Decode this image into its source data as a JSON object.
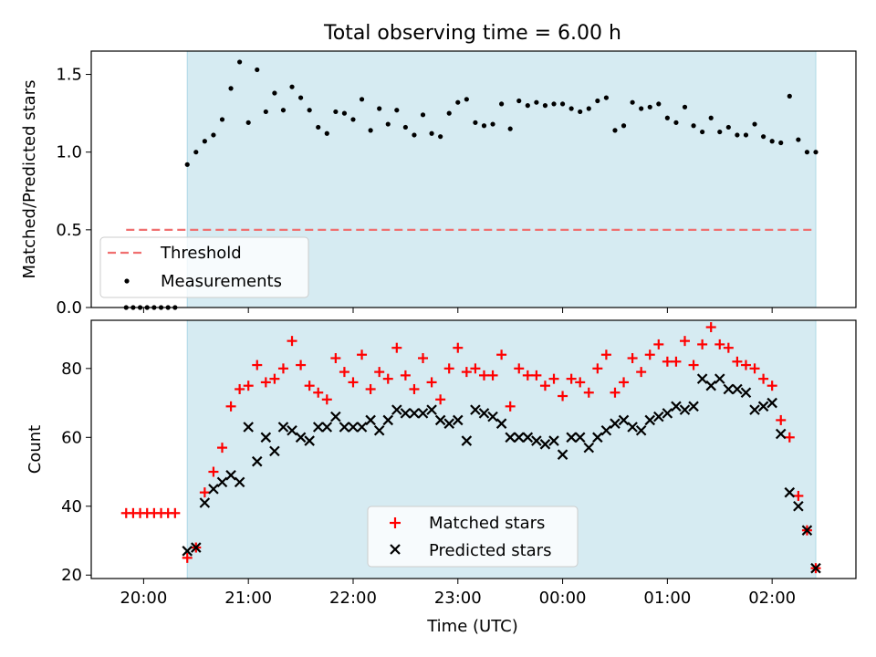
{
  "chart_data": [
    {
      "type": "scatter",
      "title": "Total observing time = 6.00 h",
      "xlabel": "",
      "ylabel": "Matched/Predicted stars",
      "xlim": [
        "19:30",
        "02:48"
      ],
      "ylim": [
        0,
        1.65
      ],
      "xticks": [
        "20:00",
        "21:00",
        "22:00",
        "23:00",
        "00:00",
        "01:00",
        "02:00"
      ],
      "yticks": [
        "0.0",
        "0.5",
        "1.0",
        "1.5"
      ],
      "observing_window": [
        "20:25",
        "02:25"
      ],
      "threshold": {
        "name": "Threshold",
        "value": 0.5,
        "color": "#f07070"
      },
      "series": [
        {
          "name": "Measurements",
          "color": "#000000",
          "marker": "dot",
          "x": [
            "19:50",
            "19:54",
            "19:58",
            "20:02",
            "20:06",
            "20:10",
            "20:14",
            "20:18",
            "20:25",
            "20:30",
            "20:35",
            "20:40",
            "20:45",
            "20:50",
            "20:55",
            "21:00",
            "21:05",
            "21:10",
            "21:15",
            "21:20",
            "21:25",
            "21:30",
            "21:35",
            "21:40",
            "21:45",
            "21:50",
            "21:55",
            "22:00",
            "22:05",
            "22:10",
            "22:15",
            "22:20",
            "22:25",
            "22:30",
            "22:35",
            "22:40",
            "22:45",
            "22:50",
            "22:55",
            "23:00",
            "23:05",
            "23:10",
            "23:15",
            "23:20",
            "23:25",
            "23:30",
            "23:35",
            "23:40",
            "23:45",
            "23:50",
            "23:55",
            "00:00",
            "00:05",
            "00:10",
            "00:15",
            "00:20",
            "00:25",
            "00:30",
            "00:35",
            "00:40",
            "00:45",
            "00:50",
            "00:55",
            "01:00",
            "01:05",
            "01:10",
            "01:15",
            "01:20",
            "01:25",
            "01:30",
            "01:35",
            "01:40",
            "01:45",
            "01:50",
            "01:55",
            "02:00",
            "02:05",
            "02:10",
            "02:15",
            "02:20",
            "02:25"
          ],
          "y": [
            0,
            0,
            0,
            0,
            0,
            0,
            0,
            0,
            0.92,
            1.0,
            1.07,
            1.11,
            1.21,
            1.41,
            1.58,
            1.19,
            1.53,
            1.26,
            1.38,
            1.27,
            1.42,
            1.35,
            1.27,
            1.16,
            1.12,
            1.26,
            1.25,
            1.21,
            1.34,
            1.14,
            1.28,
            1.18,
            1.27,
            1.16,
            1.11,
            1.24,
            1.12,
            1.1,
            1.25,
            1.32,
            1.34,
            1.19,
            1.17,
            1.18,
            1.31,
            1.15,
            1.33,
            1.3,
            1.32,
            1.3,
            1.31,
            1.31,
            1.28,
            1.26,
            1.28,
            1.33,
            1.35,
            1.14,
            1.17,
            1.32,
            1.28,
            1.29,
            1.31,
            1.22,
            1.19,
            1.29,
            1.17,
            1.13,
            1.22,
            1.13,
            1.16,
            1.11,
            1.11,
            1.18,
            1.1,
            1.07,
            1.06,
            1.36,
            1.08,
            1.0,
            1.0
          ]
        }
      ]
    },
    {
      "type": "scatter",
      "title": "",
      "xlabel": "Time (UTC)",
      "ylabel": "Count",
      "xlim": [
        "19:30",
        "02:48"
      ],
      "ylim": [
        19,
        94
      ],
      "xticks": [
        "20:00",
        "21:00",
        "22:00",
        "23:00",
        "00:00",
        "01:00",
        "02:00"
      ],
      "yticks": [
        "20",
        "40",
        "60",
        "80"
      ],
      "observing_window": [
        "20:25",
        "02:25"
      ],
      "series": [
        {
          "name": "Matched stars",
          "color": "#ff0000",
          "marker": "plus",
          "x": [
            "19:50",
            "19:54",
            "19:58",
            "20:02",
            "20:06",
            "20:10",
            "20:14",
            "20:18",
            "20:25",
            "20:30",
            "20:35",
            "20:40",
            "20:45",
            "20:50",
            "20:55",
            "21:00",
            "21:05",
            "21:10",
            "21:15",
            "21:20",
            "21:25",
            "21:30",
            "21:35",
            "21:40",
            "21:45",
            "21:50",
            "21:55",
            "22:00",
            "22:05",
            "22:10",
            "22:15",
            "22:20",
            "22:25",
            "22:30",
            "22:35",
            "22:40",
            "22:45",
            "22:50",
            "22:55",
            "23:00",
            "23:05",
            "23:10",
            "23:15",
            "23:20",
            "23:25",
            "23:30",
            "23:35",
            "23:40",
            "23:45",
            "23:50",
            "23:55",
            "00:00",
            "00:05",
            "00:10",
            "00:15",
            "00:20",
            "00:25",
            "00:30",
            "00:35",
            "00:40",
            "00:45",
            "00:50",
            "00:55",
            "01:00",
            "01:05",
            "01:10",
            "01:15",
            "01:20",
            "01:25",
            "01:30",
            "01:35",
            "01:40",
            "01:45",
            "01:50",
            "01:55",
            "02:00",
            "02:05",
            "02:10",
            "02:15",
            "02:20",
            "02:25"
          ],
          "y": [
            38,
            38,
            38,
            38,
            38,
            38,
            38,
            38,
            25,
            28,
            44,
            50,
            57,
            69,
            74,
            75,
            81,
            76,
            77,
            80,
            88,
            81,
            75,
            73,
            71,
            83,
            79,
            76,
            84,
            74,
            79,
            77,
            86,
            78,
            74,
            83,
            76,
            71,
            80,
            86,
            79,
            80,
            78,
            78,
            84,
            69,
            80,
            78,
            78,
            75,
            77,
            72,
            77,
            76,
            73,
            80,
            84,
            73,
            76,
            83,
            79,
            84,
            87,
            82,
            82,
            88,
            81,
            87,
            92,
            87,
            86,
            82,
            81,
            80,
            77,
            75,
            65,
            60,
            43,
            33,
            22
          ]
        },
        {
          "name": "Predicted stars",
          "color": "#000000",
          "marker": "x",
          "x": [
            "20:25",
            "20:30",
            "20:35",
            "20:40",
            "20:45",
            "20:50",
            "20:55",
            "21:00",
            "21:05",
            "21:10",
            "21:15",
            "21:20",
            "21:25",
            "21:30",
            "21:35",
            "21:40",
            "21:45",
            "21:50",
            "21:55",
            "22:00",
            "22:05",
            "22:10",
            "22:15",
            "22:20",
            "22:25",
            "22:30",
            "22:35",
            "22:40",
            "22:45",
            "22:50",
            "22:55",
            "23:00",
            "23:05",
            "23:10",
            "23:15",
            "23:20",
            "23:25",
            "23:30",
            "23:35",
            "23:40",
            "23:45",
            "23:50",
            "23:55",
            "00:00",
            "00:05",
            "00:10",
            "00:15",
            "00:20",
            "00:25",
            "00:30",
            "00:35",
            "00:40",
            "00:45",
            "00:50",
            "00:55",
            "01:00",
            "01:05",
            "01:10",
            "01:15",
            "01:20",
            "01:25",
            "01:30",
            "01:35",
            "01:40",
            "01:45",
            "01:50",
            "01:55",
            "02:00",
            "02:05",
            "02:10",
            "02:15",
            "02:20",
            "02:25"
          ],
          "y": [
            27,
            28,
            41,
            45,
            47,
            49,
            47,
            63,
            53,
            60,
            56,
            63,
            62,
            60,
            59,
            63,
            63,
            66,
            63,
            63,
            63,
            65,
            62,
            65,
            68,
            67,
            67,
            67,
            68,
            65,
            64,
            65,
            59,
            68,
            67,
            66,
            64,
            60,
            60,
            60,
            59,
            58,
            59,
            55,
            60,
            60,
            57,
            60,
            62,
            64,
            65,
            63,
            62,
            65,
            66,
            67,
            69,
            68,
            69,
            77,
            75,
            77,
            74,
            74,
            73,
            68,
            69,
            70,
            61,
            44,
            40,
            33,
            22
          ]
        }
      ]
    }
  ],
  "colors": {
    "window_fill": "#add8e6",
    "matched": "#ff0000",
    "predicted": "#000000",
    "threshold": "#f07070"
  }
}
